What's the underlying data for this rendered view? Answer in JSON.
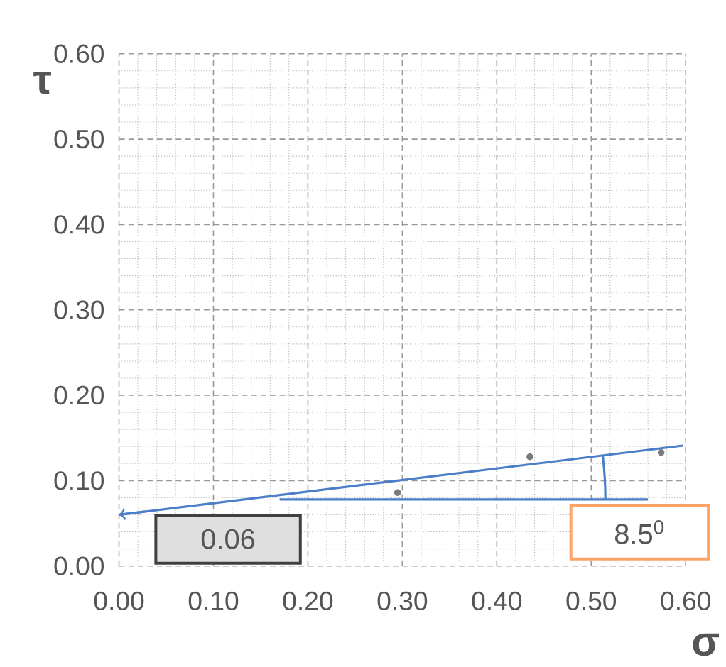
{
  "chart_data": {
    "type": "scatter",
    "xlabel": "σ",
    "ylabel": "τ",
    "xlim": [
      0,
      0.6
    ],
    "ylim": [
      0,
      0.6
    ],
    "xticks": [
      {
        "value": 0,
        "label": "0.00"
      },
      {
        "value": 0.1,
        "label": "0.10"
      },
      {
        "value": 0.2,
        "label": "0.20"
      },
      {
        "value": 0.3,
        "label": "0.30"
      },
      {
        "value": 0.4,
        "label": "0.40"
      },
      {
        "value": 0.5,
        "label": "0.50"
      },
      {
        "value": 0.6,
        "label": "0.60"
      }
    ],
    "yticks": [
      {
        "value": 0,
        "label": "0.00"
      },
      {
        "value": 0.1,
        "label": "0.10"
      },
      {
        "value": 0.2,
        "label": "0.20"
      },
      {
        "value": 0.3,
        "label": "0.30"
      },
      {
        "value": 0.4,
        "label": "0.40"
      },
      {
        "value": 0.5,
        "label": "0.50"
      },
      {
        "value": 0.6,
        "label": "0.60"
      }
    ],
    "grid": true,
    "series": [
      {
        "marker": "circle",
        "color": "#7a7a7a",
        "x": [
          0.295,
          0.435,
          0.574
        ],
        "values": [
          0.086,
          0.128,
          0.133
        ]
      },
      {
        "type": "line",
        "marker": "none",
        "color": "#4a7ec8",
        "x": [
          0.0,
          0.597
        ],
        "values": [
          0.06,
          0.141
        ]
      },
      {
        "type": "line",
        "marker": "none",
        "color": "#4a7ec8",
        "x": [
          0.17,
          0.56
        ],
        "values": [
          0.078,
          0.078
        ]
      }
    ],
    "annotations": [
      "0.06",
      {
        "text": "8.5$^{0}$",
        "x": 0.515,
        "y": 0.078
      }
    ]
  }
}
